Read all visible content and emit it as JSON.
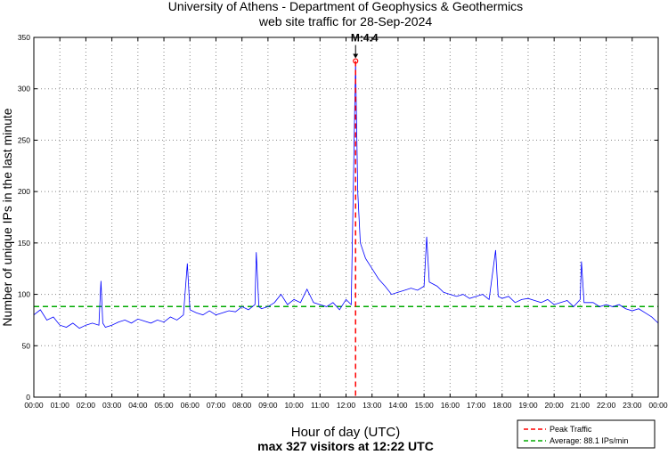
{
  "chart_data": {
    "type": "line",
    "title": "University of Athens - Department of Geophysics & Geothermics",
    "subtitle": "web site traffic for 28-Sep-2024",
    "xlabel": "Hour of day (UTC)",
    "xlabel_sub": "max 327 visitors at 12:22 UTC",
    "ylabel": "Number of unique IPs in the last minute",
    "xlim": [
      0,
      24
    ],
    "ylim": [
      0,
      350
    ],
    "grid": true,
    "x_ticks": [
      "00:00",
      "01:00",
      "02:00",
      "03:00",
      "04:00",
      "05:00",
      "06:00",
      "07:00",
      "08:00",
      "09:00",
      "10:00",
      "11:00",
      "12:00",
      "13:00",
      "14:00",
      "15:00",
      "16:00",
      "17:00",
      "18:00",
      "19:00",
      "20:00",
      "21:00",
      "22:00",
      "23:00",
      "00:00"
    ],
    "y_ticks": [
      0,
      50,
      100,
      150,
      200,
      250,
      300,
      350
    ],
    "series": [
      {
        "name": "Traffic",
        "color": "#0000ff",
        "x": [
          0,
          0.25,
          0.5,
          0.75,
          1,
          1.25,
          1.5,
          1.75,
          2,
          2.25,
          2.5,
          2.58,
          2.65,
          2.75,
          3,
          3.25,
          3.5,
          3.75,
          4,
          4.25,
          4.5,
          4.75,
          5,
          5.25,
          5.5,
          5.75,
          5.9,
          6,
          6.25,
          6.5,
          6.75,
          7,
          7.25,
          7.5,
          7.75,
          8,
          8.25,
          8.5,
          8.55,
          8.65,
          8.75,
          9,
          9.25,
          9.5,
          9.75,
          10,
          10.25,
          10.5,
          10.75,
          11,
          11.25,
          11.5,
          11.75,
          12,
          12.2,
          12.367,
          12.45,
          12.55,
          12.75,
          13,
          13.25,
          13.5,
          13.75,
          14,
          14.25,
          14.5,
          14.75,
          15,
          15.1,
          15.2,
          15.5,
          15.75,
          16,
          16.25,
          16.5,
          16.75,
          17,
          17.25,
          17.5,
          17.75,
          17.85,
          18,
          18.25,
          18.5,
          18.75,
          19,
          19.25,
          19.5,
          19.75,
          20,
          20.25,
          20.5,
          20.75,
          21,
          21.05,
          21.15,
          21.5,
          21.75,
          22,
          22.25,
          22.5,
          22.75,
          23,
          23.25,
          23.5,
          23.75,
          24
        ],
        "y": [
          80,
          85,
          75,
          78,
          70,
          68,
          72,
          67,
          70,
          72,
          70,
          113,
          72,
          68,
          70,
          73,
          75,
          72,
          76,
          74,
          72,
          75,
          73,
          78,
          75,
          80,
          130,
          85,
          82,
          80,
          84,
          80,
          82,
          84,
          83,
          88,
          85,
          90,
          141,
          88,
          86,
          88,
          92,
          100,
          90,
          95,
          92,
          105,
          92,
          90,
          88,
          92,
          85,
          95,
          90,
          327,
          200,
          150,
          135,
          125,
          115,
          108,
          100,
          102,
          104,
          106,
          104,
          108,
          156,
          112,
          108,
          102,
          100,
          98,
          100,
          96,
          98,
          100,
          95,
          143,
          98,
          96,
          98,
          92,
          95,
          96,
          94,
          92,
          95,
          90,
          92,
          94,
          88,
          95,
          132,
          92,
          92,
          88,
          90,
          88,
          90,
          86,
          84,
          86,
          82,
          78,
          72
        ]
      }
    ],
    "peak": {
      "x": 12.367,
      "y": 327,
      "label": "M:4.4",
      "color": "#ff0000"
    },
    "average": {
      "y": 88.1,
      "color": "#00aa00"
    },
    "legend": {
      "placement": "bottom-right",
      "entries": [
        "Peak Traffic",
        "Average: 88.1 IPs/min"
      ]
    }
  }
}
